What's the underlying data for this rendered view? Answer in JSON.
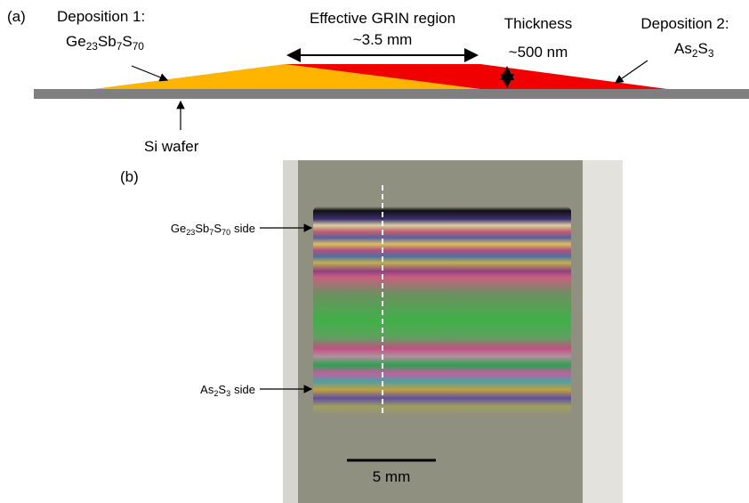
{
  "panel_a": {
    "label": "(a)",
    "deposition_1": {
      "title": "Deposition 1:",
      "formula": [
        {
          "el": "Ge",
          "sub": "23"
        },
        {
          "el": "Sb",
          "sub": "7"
        },
        {
          "el": "S",
          "sub": "70"
        }
      ]
    },
    "grin_region": {
      "title": "Effective GRIN region",
      "width": "~3.5 mm"
    },
    "thickness": {
      "title": "Thickness",
      "value": "~500 nm"
    },
    "deposition_2": {
      "title": "Deposition 2:",
      "formula": [
        {
          "el": "As",
          "sub": "2"
        },
        {
          "el": "S",
          "sub": "3"
        }
      ]
    },
    "substrate": "Si wafer"
  },
  "panel_b": {
    "label": "(b)",
    "top_side": {
      "formula": [
        {
          "el": "Ge",
          "sub": "23"
        },
        {
          "el": "Sb",
          "sub": "7"
        },
        {
          "el": "S",
          "sub": "70"
        }
      ],
      "suffix": "side"
    },
    "bottom_side": {
      "formula": [
        {
          "el": "As",
          "sub": "2"
        },
        {
          "el": "S",
          "sub": "3"
        }
      ],
      "suffix": "side"
    },
    "scale_bar": "5 mm"
  }
}
